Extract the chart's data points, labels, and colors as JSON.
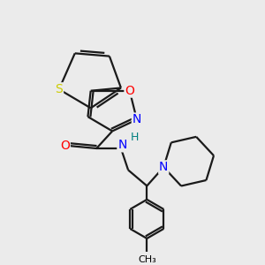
{
  "background_color": "#ebebeb",
  "bond_color": "#1a1a1a",
  "bond_lw": 1.6,
  "atom_colors": {
    "S": "#cccc00",
    "O": "#ff0000",
    "N_blue": "#0000ff",
    "N_gray": "#008080"
  },
  "figsize": [
    3.0,
    3.0
  ],
  "dpi": 100,
  "xlim": [
    0,
    10
  ],
  "ylim": [
    0,
    10
  ]
}
